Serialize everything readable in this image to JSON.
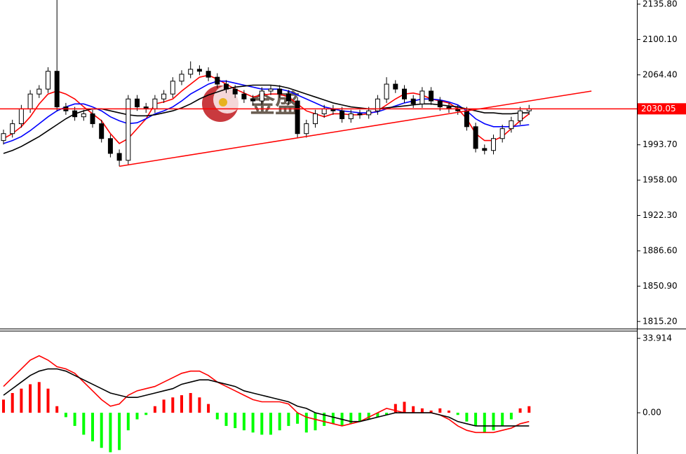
{
  "chart_data": [
    {
      "type": "candlestick",
      "open": [
        1998,
        2005,
        2015,
        2030,
        2045,
        2050,
        2068,
        2032,
        2028,
        2022,
        2025,
        2015,
        2000,
        1985,
        1978,
        2040,
        2032,
        2030,
        2040,
        2045,
        2058,
        2065,
        2070,
        2068,
        2062,
        2055,
        2050,
        2045,
        2040,
        2038,
        2048,
        2050,
        2045,
        2038,
        2005,
        2015,
        2025,
        2030,
        2028,
        2020,
        2025,
        2024,
        2028,
        2040,
        2055,
        2050,
        2040,
        2035,
        2048,
        2038,
        2032,
        2030,
        2028,
        2012,
        1990,
        1988,
        2000,
        2010,
        2018,
        2028
      ],
      "high": [
        2009,
        2019,
        2034,
        2049,
        2054,
        2072,
        2140,
        2036,
        2032,
        2029,
        2029,
        2019,
        2004,
        1989,
        2044,
        2044,
        2036,
        2044,
        2049,
        2062,
        2069,
        2078,
        2074,
        2072,
        2066,
        2059,
        2054,
        2049,
        2044,
        2052,
        2054,
        2054,
        2049,
        2042,
        2019,
        2029,
        2034,
        2034,
        2032,
        2029,
        2029,
        2032,
        2044,
        2062,
        2059,
        2054,
        2044,
        2052,
        2052,
        2042,
        2036,
        2034,
        2032,
        2016,
        1994,
        2004,
        2014,
        2022,
        2032,
        2034
      ],
      "low": [
        1994,
        2001,
        2011,
        2026,
        2041,
        2046,
        2028,
        2024,
        2018,
        2018,
        2011,
        1996,
        1981,
        1972,
        1974,
        2028,
        2026,
        2026,
        2036,
        2041,
        2054,
        2061,
        2064,
        2058,
        2051,
        2046,
        2041,
        2036,
        2034,
        2034,
        2044,
        2041,
        2034,
        2001,
        2001,
        2011,
        2021,
        2024,
        2016,
        2016,
        2020,
        2020,
        2024,
        2036,
        2046,
        2036,
        2031,
        2031,
        2034,
        2028,
        2026,
        2024,
        2008,
        1986,
        1984,
        1984,
        1996,
        2006,
        2014,
        2024
      ],
      "close": [
        2005,
        2015,
        2030,
        2045,
        2050,
        2068,
        2032,
        2028,
        2022,
        2025,
        2015,
        2000,
        1985,
        1978,
        2040,
        2032,
        2030,
        2040,
        2045,
        2058,
        2065,
        2070,
        2068,
        2062,
        2055,
        2050,
        2045,
        2040,
        2038,
        2048,
        2050,
        2045,
        2038,
        2005,
        2015,
        2025,
        2030,
        2028,
        2020,
        2025,
        2024,
        2028,
        2040,
        2055,
        2050,
        2040,
        2035,
        2048,
        2038,
        2032,
        2030,
        2028,
        2012,
        1990,
        1988,
        2000,
        2010,
        2018,
        2028,
        2030
      ],
      "series": [
        {
          "color": "#ff0000",
          "values": [
            2000,
            2005,
            2012,
            2022,
            2035,
            2045,
            2048,
            2045,
            2040,
            2032,
            2025,
            2018,
            2005,
            1995,
            2000,
            2010,
            2020,
            2035,
            2037,
            2040,
            2048,
            2055,
            2062,
            2064,
            2060,
            2055,
            2050,
            2046,
            2042,
            2044,
            2045,
            2045,
            2042,
            2035,
            2028,
            2025,
            2022,
            2025,
            2025,
            2024,
            2024,
            2025,
            2028,
            2034,
            2040,
            2045,
            2046,
            2044,
            2040,
            2038,
            2036,
            2030,
            2020,
            2005,
            1998,
            1998,
            2002,
            2010,
            2018,
            2025
          ]
        },
        {
          "color": "#0000ff",
          "values": [
            1995,
            1998,
            2002,
            2008,
            2015,
            2022,
            2028,
            2032,
            2035,
            2035,
            2032,
            2028,
            2022,
            2018,
            2015,
            2016,
            2020,
            2025,
            2028,
            2032,
            2038,
            2045,
            2050,
            2055,
            2058,
            2058,
            2056,
            2054,
            2052,
            2050,
            2050,
            2050,
            2048,
            2044,
            2040,
            2036,
            2032,
            2030,
            2028,
            2027,
            2026,
            2026,
            2027,
            2030,
            2033,
            2036,
            2038,
            2040,
            2040,
            2039,
            2037,
            2034,
            2028,
            2020,
            2015,
            2012,
            2012,
            2012,
            2013,
            2014
          ]
        },
        {
          "color": "#000000",
          "values": [
            1985,
            1988,
            1992,
            1997,
            2002,
            2008,
            2014,
            2020,
            2025,
            2028,
            2030,
            2030,
            2028,
            2026,
            2024,
            2023,
            2023,
            2024,
            2026,
            2028,
            2031,
            2035,
            2040,
            2044,
            2047,
            2050,
            2052,
            2053,
            2054,
            2054,
            2054,
            2053,
            2051,
            2048,
            2045,
            2042,
            2039,
            2036,
            2034,
            2032,
            2031,
            2030,
            2030,
            2031,
            2032,
            2033,
            2034,
            2035,
            2035,
            2034,
            2033,
            2032,
            2030,
            2028,
            2026,
            2026,
            2025,
            2025,
            2026,
            2026
          ]
        }
      ],
      "trendline": {
        "color": "#ff0000",
        "x": [
          13,
          66
        ],
        "y": [
          1972,
          2048
        ]
      },
      "price_line": {
        "value": 2030.05,
        "label": "2030.05",
        "color": "#ff0000"
      },
      "watermark": "金盛",
      "ylim": [
        1808,
        2140
      ],
      "yticks": [
        {
          "value": 2135.8,
          "label": "2135.80"
        },
        {
          "value": 2100.1,
          "label": "2100.10"
        },
        {
          "value": 2064.4,
          "label": "2064.40"
        },
        {
          "value": 1993.7,
          "label": "1993.70"
        },
        {
          "value": 1958,
          "label": "1958.00"
        },
        {
          "value": 1922.3,
          "label": "1922.30"
        },
        {
          "value": 1886.6,
          "label": "1886.60"
        },
        {
          "value": 1850.9,
          "label": "1850.90"
        },
        {
          "value": 1815.2,
          "label": "1815.20"
        }
      ]
    },
    {
      "type": "macd",
      "values": [
        6,
        9,
        11,
        13,
        14,
        11,
        3,
        -2,
        -6,
        -10,
        -13,
        -16,
        -18,
        -17,
        -8,
        -3,
        -1,
        3,
        6,
        7,
        8,
        9,
        7,
        4,
        -3,
        -6,
        -7,
        -8,
        -9,
        -10,
        -10,
        -8,
        -6,
        -5,
        -9,
        -8,
        -6,
        -5,
        -6,
        -5,
        -4,
        -3,
        -2,
        -1,
        4,
        5,
        3,
        2,
        1,
        2,
        1,
        -1,
        -4,
        -6,
        -9,
        -8,
        -6,
        -3,
        2,
        3
      ],
      "positive_color": "#ff0000",
      "negative_color": "#00ff00",
      "series": [
        {
          "color": "#ff0000",
          "values": [
            12,
            16,
            20,
            24,
            26,
            24,
            21,
            20,
            18,
            14,
            10,
            6,
            3,
            4,
            8,
            10,
            11,
            12,
            14,
            16,
            18,
            19,
            19,
            17,
            14,
            12,
            10,
            8,
            6,
            5,
            5,
            5,
            4,
            0,
            -2,
            -3,
            -4,
            -5,
            -6,
            -5,
            -4,
            -2,
            0,
            2,
            1,
            0,
            0,
            0,
            0,
            -1,
            -3,
            -6,
            -8,
            -9,
            -9,
            -9,
            -8,
            -7,
            -5,
            -4
          ]
        },
        {
          "color": "#000000",
          "values": [
            8,
            11,
            14,
            17,
            19,
            20,
            20,
            19,
            17,
            15,
            13,
            11,
            9,
            8,
            7,
            7,
            8,
            9,
            10,
            11,
            13,
            14,
            15,
            15,
            14,
            13,
            12,
            10,
            9,
            8,
            7,
            6,
            5,
            3,
            2,
            0,
            -1,
            -2,
            -3,
            -4,
            -4,
            -3,
            -2,
            -1,
            0,
            0,
            0,
            0,
            0,
            -1,
            -2,
            -4,
            -5,
            -6,
            -6,
            -6,
            -6,
            -6,
            -6,
            -6
          ]
        }
      ],
      "ylim": [
        -18.8,
        37.1
      ],
      "yticks": [
        33.914,
        {
          "value": 0,
          "label": "0.00"
        }
      ]
    }
  ]
}
